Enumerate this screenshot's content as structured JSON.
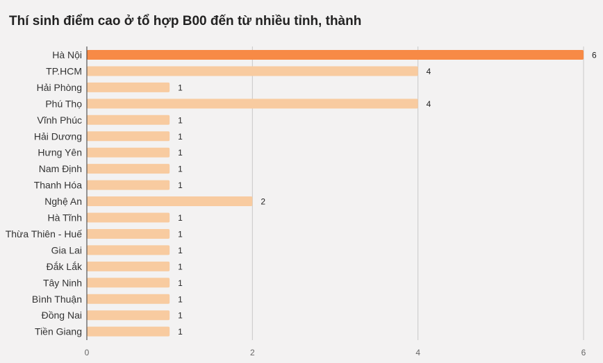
{
  "chart_data": {
    "type": "bar",
    "orientation": "horizontal",
    "title": "Thí sinh điểm cao ở tổ hợp B00 đến từ nhiều tỉnh, thành",
    "categories": [
      "Hà Nội",
      "TP.HCM",
      "Hải Phòng",
      "Phú Thọ",
      "Vĩnh Phúc",
      "Hải Dương",
      "Hưng Yên",
      "Nam Định",
      "Thanh Hóa",
      "Nghệ An",
      "Hà Tĩnh",
      "Thừa Thiên - Huế",
      "Gia Lai",
      "Đắk Lắk",
      "Tây Ninh",
      "Bình Thuận",
      "Đồng Nai",
      "Tiền Giang"
    ],
    "values": [
      6,
      4,
      1,
      4,
      1,
      1,
      1,
      1,
      1,
      2,
      1,
      1,
      1,
      1,
      1,
      1,
      1,
      1
    ],
    "xlim": [
      0,
      6
    ],
    "xticks": [
      0,
      2,
      4,
      6
    ],
    "grid": true,
    "highlight_index": 0,
    "colors": {
      "highlight": "#f78a46",
      "bar": "#f8cba0",
      "grid": "#c8c8c8",
      "axis": "#333333"
    }
  }
}
